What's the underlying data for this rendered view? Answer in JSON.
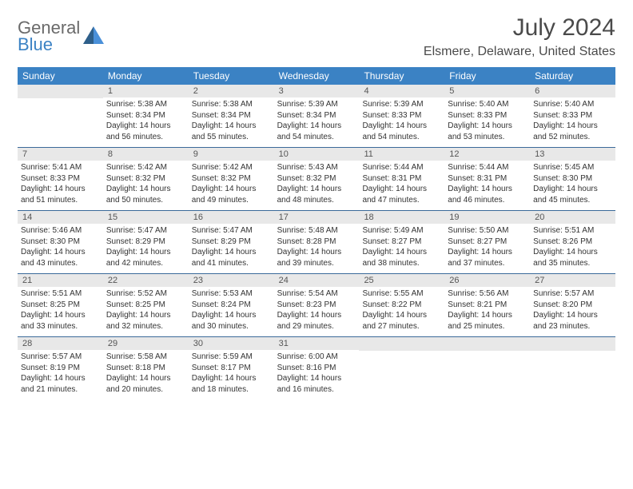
{
  "logo": {
    "word1": "General",
    "word2": "Blue"
  },
  "title": "July 2024",
  "location": "Elsmere, Delaware, United States",
  "colors": {
    "header_bg": "#3b82c4",
    "header_text": "#ffffff",
    "daynum_bg": "#e8e8e8",
    "row_border": "#3b6a9a",
    "body_text": "#333333",
    "title_text": "#4a4a4a",
    "logo_gray": "#6a6a6a",
    "logo_blue": "#3b82c4"
  },
  "typography": {
    "title_fontsize": 30,
    "location_fontsize": 16,
    "dayheader_fontsize": 12,
    "daynum_fontsize": 11,
    "body_fontsize": 10
  },
  "day_headers": [
    "Sunday",
    "Monday",
    "Tuesday",
    "Wednesday",
    "Thursday",
    "Friday",
    "Saturday"
  ],
  "weeks": [
    [
      {
        "n": "",
        "lines": []
      },
      {
        "n": "1",
        "lines": [
          "Sunrise: 5:38 AM",
          "Sunset: 8:34 PM",
          "Daylight: 14 hours",
          "and 56 minutes."
        ]
      },
      {
        "n": "2",
        "lines": [
          "Sunrise: 5:38 AM",
          "Sunset: 8:34 PM",
          "Daylight: 14 hours",
          "and 55 minutes."
        ]
      },
      {
        "n": "3",
        "lines": [
          "Sunrise: 5:39 AM",
          "Sunset: 8:34 PM",
          "Daylight: 14 hours",
          "and 54 minutes."
        ]
      },
      {
        "n": "4",
        "lines": [
          "Sunrise: 5:39 AM",
          "Sunset: 8:33 PM",
          "Daylight: 14 hours",
          "and 54 minutes."
        ]
      },
      {
        "n": "5",
        "lines": [
          "Sunrise: 5:40 AM",
          "Sunset: 8:33 PM",
          "Daylight: 14 hours",
          "and 53 minutes."
        ]
      },
      {
        "n": "6",
        "lines": [
          "Sunrise: 5:40 AM",
          "Sunset: 8:33 PM",
          "Daylight: 14 hours",
          "and 52 minutes."
        ]
      }
    ],
    [
      {
        "n": "7",
        "lines": [
          "Sunrise: 5:41 AM",
          "Sunset: 8:33 PM",
          "Daylight: 14 hours",
          "and 51 minutes."
        ]
      },
      {
        "n": "8",
        "lines": [
          "Sunrise: 5:42 AM",
          "Sunset: 8:32 PM",
          "Daylight: 14 hours",
          "and 50 minutes."
        ]
      },
      {
        "n": "9",
        "lines": [
          "Sunrise: 5:42 AM",
          "Sunset: 8:32 PM",
          "Daylight: 14 hours",
          "and 49 minutes."
        ]
      },
      {
        "n": "10",
        "lines": [
          "Sunrise: 5:43 AM",
          "Sunset: 8:32 PM",
          "Daylight: 14 hours",
          "and 48 minutes."
        ]
      },
      {
        "n": "11",
        "lines": [
          "Sunrise: 5:44 AM",
          "Sunset: 8:31 PM",
          "Daylight: 14 hours",
          "and 47 minutes."
        ]
      },
      {
        "n": "12",
        "lines": [
          "Sunrise: 5:44 AM",
          "Sunset: 8:31 PM",
          "Daylight: 14 hours",
          "and 46 minutes."
        ]
      },
      {
        "n": "13",
        "lines": [
          "Sunrise: 5:45 AM",
          "Sunset: 8:30 PM",
          "Daylight: 14 hours",
          "and 45 minutes."
        ]
      }
    ],
    [
      {
        "n": "14",
        "lines": [
          "Sunrise: 5:46 AM",
          "Sunset: 8:30 PM",
          "Daylight: 14 hours",
          "and 43 minutes."
        ]
      },
      {
        "n": "15",
        "lines": [
          "Sunrise: 5:47 AM",
          "Sunset: 8:29 PM",
          "Daylight: 14 hours",
          "and 42 minutes."
        ]
      },
      {
        "n": "16",
        "lines": [
          "Sunrise: 5:47 AM",
          "Sunset: 8:29 PM",
          "Daylight: 14 hours",
          "and 41 minutes."
        ]
      },
      {
        "n": "17",
        "lines": [
          "Sunrise: 5:48 AM",
          "Sunset: 8:28 PM",
          "Daylight: 14 hours",
          "and 39 minutes."
        ]
      },
      {
        "n": "18",
        "lines": [
          "Sunrise: 5:49 AM",
          "Sunset: 8:27 PM",
          "Daylight: 14 hours",
          "and 38 minutes."
        ]
      },
      {
        "n": "19",
        "lines": [
          "Sunrise: 5:50 AM",
          "Sunset: 8:27 PM",
          "Daylight: 14 hours",
          "and 37 minutes."
        ]
      },
      {
        "n": "20",
        "lines": [
          "Sunrise: 5:51 AM",
          "Sunset: 8:26 PM",
          "Daylight: 14 hours",
          "and 35 minutes."
        ]
      }
    ],
    [
      {
        "n": "21",
        "lines": [
          "Sunrise: 5:51 AM",
          "Sunset: 8:25 PM",
          "Daylight: 14 hours",
          "and 33 minutes."
        ]
      },
      {
        "n": "22",
        "lines": [
          "Sunrise: 5:52 AM",
          "Sunset: 8:25 PM",
          "Daylight: 14 hours",
          "and 32 minutes."
        ]
      },
      {
        "n": "23",
        "lines": [
          "Sunrise: 5:53 AM",
          "Sunset: 8:24 PM",
          "Daylight: 14 hours",
          "and 30 minutes."
        ]
      },
      {
        "n": "24",
        "lines": [
          "Sunrise: 5:54 AM",
          "Sunset: 8:23 PM",
          "Daylight: 14 hours",
          "and 29 minutes."
        ]
      },
      {
        "n": "25",
        "lines": [
          "Sunrise: 5:55 AM",
          "Sunset: 8:22 PM",
          "Daylight: 14 hours",
          "and 27 minutes."
        ]
      },
      {
        "n": "26",
        "lines": [
          "Sunrise: 5:56 AM",
          "Sunset: 8:21 PM",
          "Daylight: 14 hours",
          "and 25 minutes."
        ]
      },
      {
        "n": "27",
        "lines": [
          "Sunrise: 5:57 AM",
          "Sunset: 8:20 PM",
          "Daylight: 14 hours",
          "and 23 minutes."
        ]
      }
    ],
    [
      {
        "n": "28",
        "lines": [
          "Sunrise: 5:57 AM",
          "Sunset: 8:19 PM",
          "Daylight: 14 hours",
          "and 21 minutes."
        ]
      },
      {
        "n": "29",
        "lines": [
          "Sunrise: 5:58 AM",
          "Sunset: 8:18 PM",
          "Daylight: 14 hours",
          "and 20 minutes."
        ]
      },
      {
        "n": "30",
        "lines": [
          "Sunrise: 5:59 AM",
          "Sunset: 8:17 PM",
          "Daylight: 14 hours",
          "and 18 minutes."
        ]
      },
      {
        "n": "31",
        "lines": [
          "Sunrise: 6:00 AM",
          "Sunset: 8:16 PM",
          "Daylight: 14 hours",
          "and 16 minutes."
        ]
      },
      {
        "n": "",
        "lines": []
      },
      {
        "n": "",
        "lines": []
      },
      {
        "n": "",
        "lines": []
      }
    ]
  ]
}
